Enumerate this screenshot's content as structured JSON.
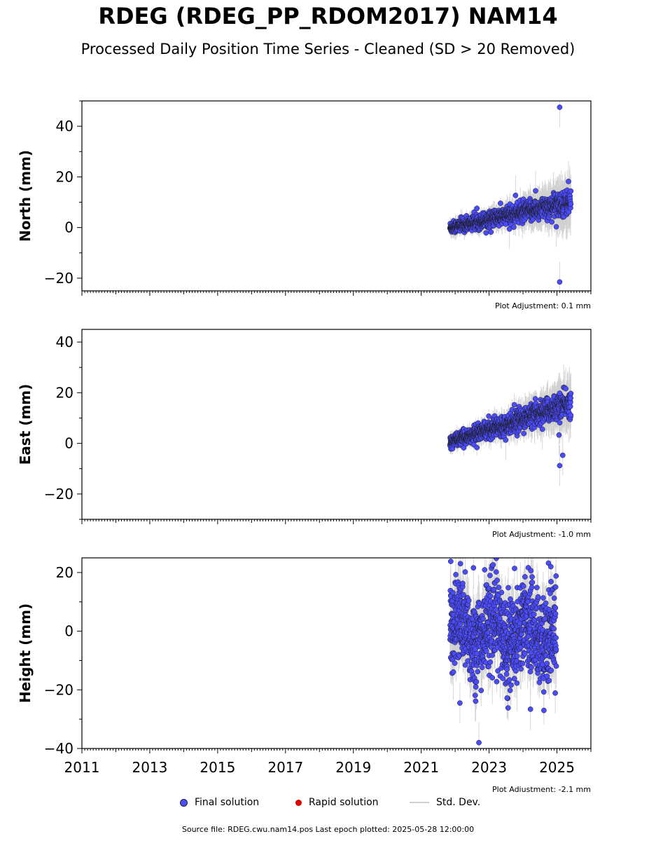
{
  "header": {
    "title": "RDEG (RDEG_PP_RDOM2017) NAM14",
    "subtitle": "Processed Daily Position Time Series - Cleaned (SD > 20 Removed)"
  },
  "legend": {
    "final_label": "Final solution",
    "rapid_label": "Rapid solution",
    "std_label": "Std. Dev.",
    "final_color": "#4c4cff",
    "rapid_color": "#dd0000",
    "std_color": "#d0d0d0"
  },
  "footer": {
    "source_text": "Source file: RDEG.cwu.nam14.pos  Last epoch plotted: 2025-05-28 12:00:00"
  },
  "chart_data": [
    {
      "type": "scatter",
      "ylabel": "North (mm)",
      "adjustment": "Plot Adjustment: 0.1 mm",
      "xlim": [
        2011,
        2026
      ],
      "ylim": [
        -25,
        50
      ],
      "yticks": [
        -20,
        0,
        20,
        40
      ],
      "ytick_labels": [
        "−20",
        "0",
        "20",
        "40"
      ],
      "data_start": 2021.85,
      "data_end": 2025.41,
      "trend": {
        "start_value": 0.0,
        "end_value": 10.0
      },
      "scatter_sd": 1.6,
      "outliers": [
        {
          "x": 2025.08,
          "y": 47.5
        },
        {
          "x": 2025.08,
          "y": -21.5
        },
        {
          "x": 2024.37,
          "y": 14.5
        },
        {
          "x": 2023.78,
          "y": 12.7
        },
        {
          "x": 2025.34,
          "y": 18.2
        },
        {
          "x": 2024.98,
          "y": 0.3
        },
        {
          "x": 2023.6,
          "y": -0.6
        }
      ]
    },
    {
      "type": "scatter",
      "ylabel": "East (mm)",
      "adjustment": "Plot Adjustment: -1.0 mm",
      "xlim": [
        2011,
        2026
      ],
      "ylim": [
        -30,
        45
      ],
      "yticks": [
        -20,
        0,
        20,
        40
      ],
      "ytick_labels": [
        "−20",
        "0",
        "20",
        "40"
      ],
      "data_start": 2021.85,
      "data_end": 2025.41,
      "trend": {
        "start_value": 0.5,
        "end_value": 16.0
      },
      "scatter_sd": 1.7,
      "outliers": [
        {
          "x": 2025.08,
          "y": 19.8
        },
        {
          "x": 2025.08,
          "y": -8.8
        },
        {
          "x": 2025.17,
          "y": -4.7
        },
        {
          "x": 2025.06,
          "y": 3.3
        },
        {
          "x": 2023.49,
          "y": 1.3
        },
        {
          "x": 2024.57,
          "y": 5.6
        }
      ]
    },
    {
      "type": "scatter",
      "ylabel": "Height (mm)",
      "adjustment": "Plot Adjustment: -2.1 mm",
      "xlim": [
        2011,
        2026
      ],
      "ylim": [
        -40,
        25
      ],
      "yticks": [
        -40,
        -20,
        0,
        20
      ],
      "ytick_labels": [
        "−40",
        "−20",
        "0",
        "20"
      ],
      "xticks": [
        2011,
        2013,
        2015,
        2017,
        2019,
        2021,
        2023,
        2025
      ],
      "xtick_labels": [
        "2011",
        "2013",
        "2015",
        "2017",
        "2019",
        "2021",
        "2023",
        "2025"
      ],
      "data_start": 2021.85,
      "data_end": 2024.98,
      "trend": {
        "start_value": 0.0,
        "end_value": 0.0
      },
      "scatter_sd": 7.5,
      "outliers": [
        {
          "x": 2021.87,
          "y": 23.8
        },
        {
          "x": 2022.54,
          "y": 21.6
        },
        {
          "x": 2022.7,
          "y": -38.0
        },
        {
          "x": 2024.75,
          "y": 23.2
        },
        {
          "x": 2024.82,
          "y": 22.0
        },
        {
          "x": 2023.21,
          "y": 20.2
        },
        {
          "x": 2023.75,
          "y": 21.4
        },
        {
          "x": 2024.22,
          "y": -26.6
        },
        {
          "x": 2022.14,
          "y": -24.5
        },
        {
          "x": 2023.53,
          "y": -22.8
        },
        {
          "x": 2024.95,
          "y": -21.1
        }
      ]
    }
  ]
}
